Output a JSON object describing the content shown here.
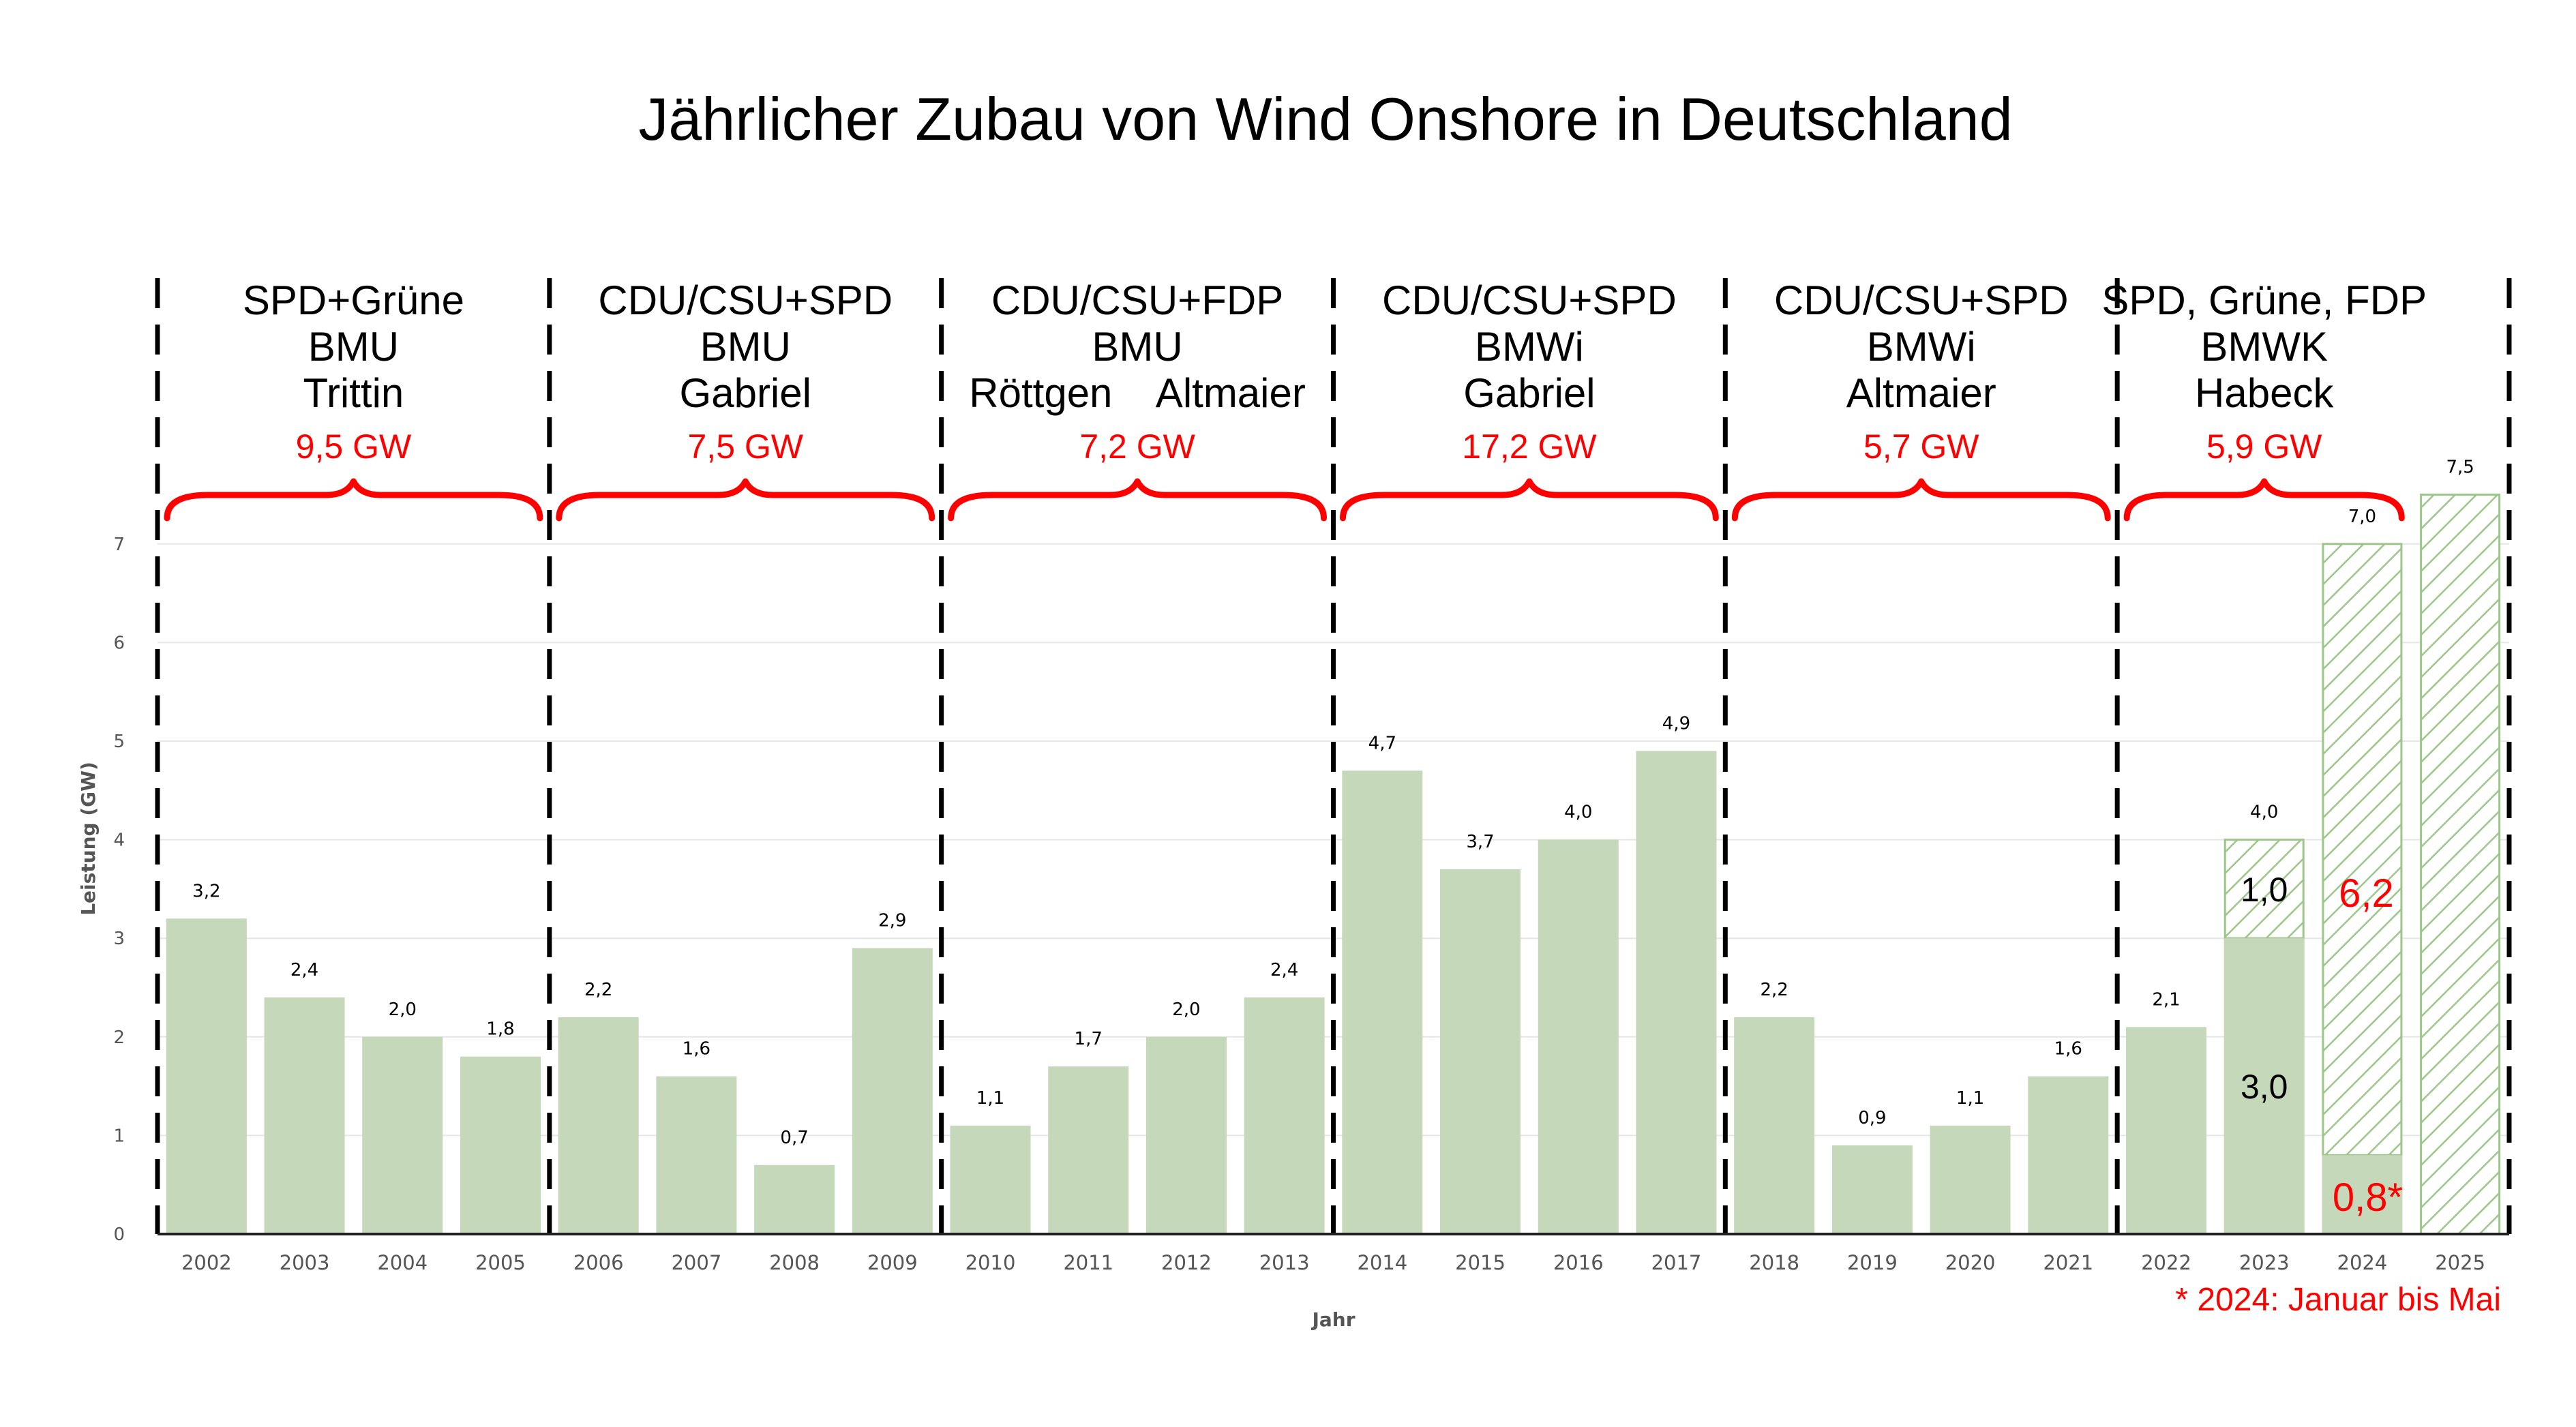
{
  "chart_data": {
    "type": "bar",
    "title": "Jährlicher Zubau von Wind Onshore in Deutschland",
    "xlabel": "Jahr",
    "ylabel": "Leistung (GW)",
    "ylim": [
      0,
      7.5
    ],
    "y_ticks": [
      "0",
      "1",
      "2",
      "3",
      "4",
      "5",
      "6",
      "7"
    ],
    "grid": true,
    "categories": [
      "2002",
      "2003",
      "2004",
      "2005",
      "2006",
      "2007",
      "2008",
      "2009",
      "2010",
      "2011",
      "2012",
      "2013",
      "2014",
      "2015",
      "2016",
      "2017",
      "2018",
      "2019",
      "2020",
      "2021",
      "2022",
      "2023",
      "2024",
      "2025"
    ],
    "values": [
      3.2,
      2.4,
      2.0,
      1.8,
      2.2,
      1.6,
      0.7,
      2.9,
      1.1,
      1.7,
      2.0,
      2.4,
      4.7,
      3.7,
      4.0,
      4.9,
      2.2,
      0.9,
      1.1,
      1.6,
      2.1,
      4.0,
      7.0,
      7.5
    ],
    "value_labels": [
      "3,2",
      "2,4",
      "2,0",
      "1,8",
      "2,2",
      "1,6",
      "0,7",
      "2,9",
      "1,1",
      "1,7",
      "2,0",
      "2,4",
      "4,7",
      "3,7",
      "4,0",
      "4,9",
      "2,2",
      "0,9",
      "1,1",
      "1,6",
      "2,1",
      "4,0",
      "7,0",
      "7,5"
    ],
    "stacked_bars": [
      {
        "category": "2023",
        "actual": 3.0,
        "actual_label": "3,0",
        "planned": 1.0,
        "planned_label": "1,0"
      },
      {
        "category": "2024",
        "actual": 0.8,
        "actual_label": "0,8*",
        "planned": 6.2,
        "planned_label": "6,2"
      },
      {
        "category": "2025",
        "actual": 0,
        "planned": 7.5
      }
    ],
    "governments": [
      {
        "lines": [
          "SPD+Grüne",
          "BMU",
          "Trittin"
        ],
        "total": "9,5 GW",
        "years": [
          "2002",
          "2005"
        ]
      },
      {
        "lines": [
          "CDU/CSU+SPD",
          "BMU",
          "Gabriel"
        ],
        "total": "7,5 GW",
        "years": [
          "2006",
          "2009"
        ]
      },
      {
        "lines": [
          "CDU/CSU+FDP",
          "BMU",
          "Röttgen    Altmaier"
        ],
        "total": "7,2 GW",
        "years": [
          "2010",
          "2013"
        ]
      },
      {
        "lines": [
          "CDU/CSU+SPD",
          "BMWi",
          "Gabriel"
        ],
        "total": "17,2 GW",
        "years": [
          "2014",
          "2017"
        ]
      },
      {
        "lines": [
          "CDU/CSU+SPD",
          "BMWi",
          "Altmaier"
        ],
        "total": "5,7 GW",
        "years": [
          "2018",
          "2021"
        ]
      },
      {
        "lines": [
          "SPD, Grüne, FDP",
          "BMWK",
          "Habeck"
        ],
        "total": "5,9 GW",
        "years": [
          "2022",
          "2024"
        ]
      }
    ],
    "footnote": "* 2024: Januar bis Mai",
    "colors": {
      "bar": "#c5d8ba",
      "hatch": "#9cc68a",
      "brace": "#ff0000",
      "annotation": "#ff0000",
      "grid": "#e6e6e6"
    }
  }
}
